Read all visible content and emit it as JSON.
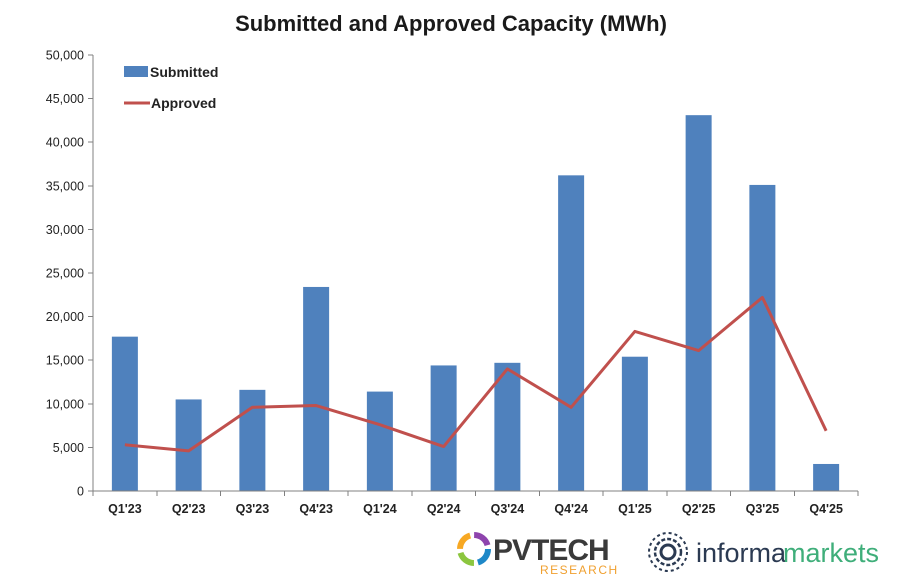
{
  "chart_data": {
    "type": "bar",
    "title": "Submitted and Approved Capacity (MWh)",
    "categories": [
      "Q1'23",
      "Q2'23",
      "Q3'23",
      "Q4'23",
      "Q1'24",
      "Q2'24",
      "Q3'24",
      "Q4'24",
      "Q1'25",
      "Q2'25",
      "Q3'25",
      "Q4'25"
    ],
    "series": [
      {
        "name": "Submitted",
        "type": "bar",
        "color": "#4f81bd",
        "values": [
          17700,
          10500,
          11600,
          23400,
          11400,
          14400,
          14700,
          36200,
          15400,
          43100,
          35100,
          3100
        ]
      },
      {
        "name": "Approved",
        "type": "line",
        "color": "#c0504d",
        "values": [
          5300,
          4600,
          9600,
          9800,
          7600,
          5100,
          14000,
          9600,
          18300,
          16100,
          22200,
          6900
        ]
      }
    ],
    "ylim": [
      0,
      50000
    ],
    "yticks": [
      "0",
      "5,000",
      "10,000",
      "15,000",
      "20,000",
      "25,000",
      "30,000",
      "35,000",
      "40,000",
      "45,000",
      "50,000"
    ],
    "ytick_values": [
      0,
      5000,
      10000,
      15000,
      20000,
      25000,
      30000,
      35000,
      40000,
      45000,
      50000
    ],
    "legend_position": "top-left",
    "grid": false
  },
  "logos": {
    "pvtech_main": "PVTECH",
    "pvtech_sub": "RESEARCH",
    "informa_word": "informa",
    "markets_word": "markets"
  }
}
